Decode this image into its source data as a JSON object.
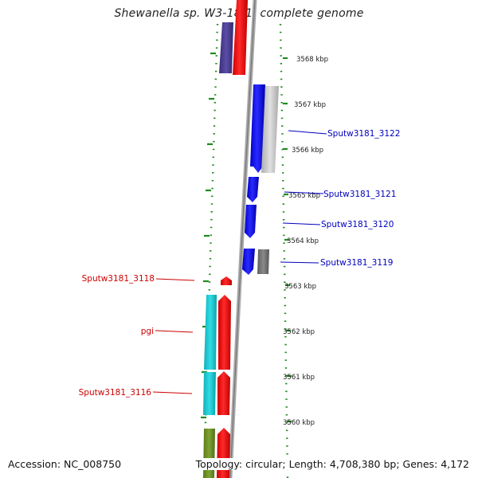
{
  "title": "Shewanella sp. W3-18-1, complete genome",
  "footer": {
    "accession": "Accession: NC_008750",
    "topology": "Topology: circular; Length: 4,708,380 bp; Genes: 4,172"
  },
  "scale": {
    "unit": "kbp",
    "ticks": [
      {
        "value": 3568,
        "label": "3568 kbp"
      },
      {
        "value": 3567,
        "label": "3567 kbp"
      },
      {
        "value": 3566,
        "label": "3566 kbp"
      },
      {
        "value": 3565,
        "label": "3565 kbp"
      },
      {
        "value": 3564,
        "label": "3564 kbp"
      },
      {
        "value": 3563,
        "label": "3563 kbp"
      },
      {
        "value": 3562,
        "label": "3562 kbp"
      },
      {
        "value": 3561,
        "label": "3561 kbp"
      },
      {
        "value": 3560,
        "label": "3560 kbp"
      }
    ]
  },
  "colors": {
    "backbone": "#9a9a9a",
    "ring_dots": "#1f8a1f",
    "forward_label": "#0000bb",
    "reverse_label": "#cc0000",
    "blue": "#1111ee",
    "red": "#ee1111",
    "navy": "#4a3d8f",
    "cyan": "#18c8d0",
    "olive": "#6b8e23",
    "light_gray": "#c8c8c8",
    "dark_gray": "#7a7a7a"
  },
  "genes": [
    {
      "id": "Sputw3181_3122",
      "label": "Sputw3181_3122",
      "side": "right"
    },
    {
      "id": "Sputw3181_3121",
      "label": "Sputw3181_3121",
      "side": "right"
    },
    {
      "id": "Sputw3181_3120",
      "label": "Sputw3181_3120",
      "side": "right"
    },
    {
      "id": "Sputw3181_3119",
      "label": "Sputw3181_3119",
      "side": "right"
    },
    {
      "id": "Sputw3181_3118",
      "label": "Sputw3181_3118",
      "side": "left"
    },
    {
      "id": "pgi",
      "label": "pgi",
      "side": "left"
    },
    {
      "id": "Sputw3181_3116",
      "label": "Sputw3181_3116",
      "side": "left"
    }
  ]
}
